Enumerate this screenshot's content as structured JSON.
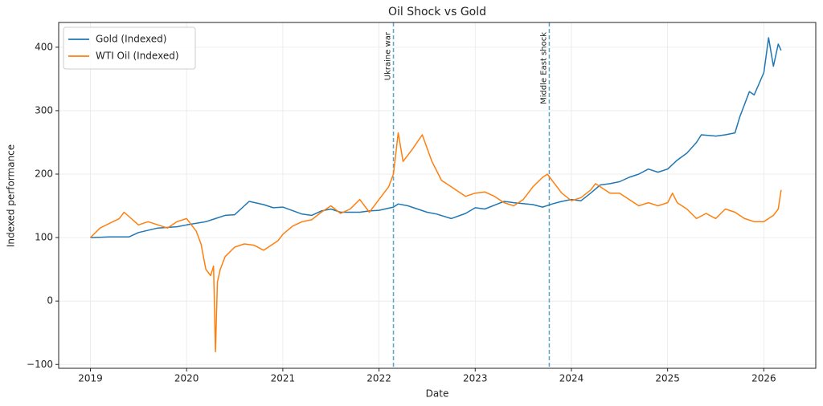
{
  "chart_data": {
    "type": "line",
    "title": "Oil Shock vs Gold",
    "xlabel": "Date",
    "ylabel": "Indexed performance",
    "xlim": [
      2018.67,
      2026.54
    ],
    "ylim": [
      -106,
      439
    ],
    "xticks": [
      2019,
      2020,
      2021,
      2022,
      2023,
      2024,
      2025,
      2026
    ],
    "yticks": [
      {
        "value": -100,
        "label": "−100"
      },
      0,
      100,
      200,
      300,
      400
    ],
    "grid": true,
    "legend": "upper left",
    "annotations": [
      {
        "text": "Ukraine war",
        "x": 2022.15,
        "color": "#5fa2c8"
      },
      {
        "text": "Middle East shock",
        "x": 2023.77,
        "color": "#5fa2c8"
      }
    ],
    "series": [
      {
        "name": "Gold (Indexed)",
        "color": "#1f77b4",
        "x": [
          2019.0,
          2019.2,
          2019.4,
          2019.5,
          2019.7,
          2019.9,
          2020.0,
          2020.2,
          2020.3,
          2020.4,
          2020.5,
          2020.6,
          2020.65,
          2020.8,
          2020.9,
          2021.0,
          2021.2,
          2021.3,
          2021.4,
          2021.5,
          2021.6,
          2021.8,
          2021.9,
          2022.0,
          2022.15,
          2022.2,
          2022.3,
          2022.4,
          2022.5,
          2022.6,
          2022.75,
          2022.9,
          2023.0,
          2023.1,
          2023.3,
          2023.4,
          2023.6,
          2023.7,
          2023.8,
          2023.9,
          2024.0,
          2024.1,
          2024.2,
          2024.3,
          2024.4,
          2024.5,
          2024.6,
          2024.7,
          2024.8,
          2024.9,
          2025.0,
          2025.1,
          2025.2,
          2025.3,
          2025.35,
          2025.5,
          2025.6,
          2025.7,
          2025.75,
          2025.8,
          2025.85,
          2025.9,
          2026.0,
          2026.05,
          2026.1,
          2026.15,
          2026.18
        ],
        "values": [
          100,
          101,
          101,
          108,
          115,
          117,
          120,
          125,
          130,
          135,
          136,
          150,
          157,
          152,
          147,
          148,
          137,
          135,
          142,
          145,
          140,
          140,
          142,
          143,
          148,
          153,
          150,
          145,
          140,
          137,
          130,
          138,
          147,
          145,
          157,
          155,
          152,
          148,
          153,
          157,
          160,
          158,
          170,
          183,
          185,
          188,
          195,
          200,
          208,
          203,
          208,
          222,
          233,
          250,
          262,
          260,
          262,
          265,
          290,
          310,
          330,
          325,
          360,
          415,
          370,
          405,
          395
        ]
      },
      {
        "name": "WTI Oil (Indexed)",
        "color": "#ff7f0e",
        "x": [
          2019.0,
          2019.1,
          2019.3,
          2019.35,
          2019.5,
          2019.6,
          2019.8,
          2019.9,
          2020.0,
          2020.05,
          2020.1,
          2020.15,
          2020.2,
          2020.25,
          2020.28,
          2020.3,
          2020.32,
          2020.35,
          2020.4,
          2020.5,
          2020.6,
          2020.7,
          2020.8,
          2020.85,
          2020.95,
          2021.0,
          2021.1,
          2021.2,
          2021.3,
          2021.4,
          2021.5,
          2021.6,
          2021.7,
          2021.8,
          2021.9,
          2022.0,
          2022.1,
          2022.15,
          2022.2,
          2022.25,
          2022.35,
          2022.45,
          2022.55,
          2022.65,
          2022.75,
          2022.8,
          2022.9,
          2023.0,
          2023.1,
          2023.2,
          2023.3,
          2023.4,
          2023.5,
          2023.6,
          2023.7,
          2023.75,
          2023.8,
          2023.9,
          2024.0,
          2024.1,
          2024.2,
          2024.25,
          2024.3,
          2024.4,
          2024.5,
          2024.6,
          2024.7,
          2024.8,
          2024.9,
          2025.0,
          2025.05,
          2025.1,
          2025.2,
          2025.3,
          2025.4,
          2025.5,
          2025.6,
          2025.7,
          2025.8,
          2025.9,
          2026.0,
          2026.1,
          2026.15,
          2026.18
        ],
        "values": [
          100,
          115,
          130,
          140,
          120,
          125,
          115,
          125,
          130,
          120,
          110,
          90,
          50,
          40,
          55,
          -80,
          30,
          50,
          70,
          85,
          90,
          88,
          80,
          85,
          95,
          105,
          118,
          125,
          128,
          140,
          150,
          138,
          145,
          160,
          140,
          160,
          180,
          200,
          265,
          220,
          240,
          262,
          220,
          190,
          180,
          175,
          165,
          170,
          172,
          165,
          155,
          150,
          160,
          180,
          195,
          200,
          190,
          170,
          158,
          163,
          175,
          185,
          180,
          170,
          170,
          160,
          150,
          155,
          150,
          155,
          170,
          155,
          145,
          130,
          138,
          130,
          145,
          140,
          130,
          125,
          125,
          135,
          145,
          175
        ]
      }
    ]
  }
}
